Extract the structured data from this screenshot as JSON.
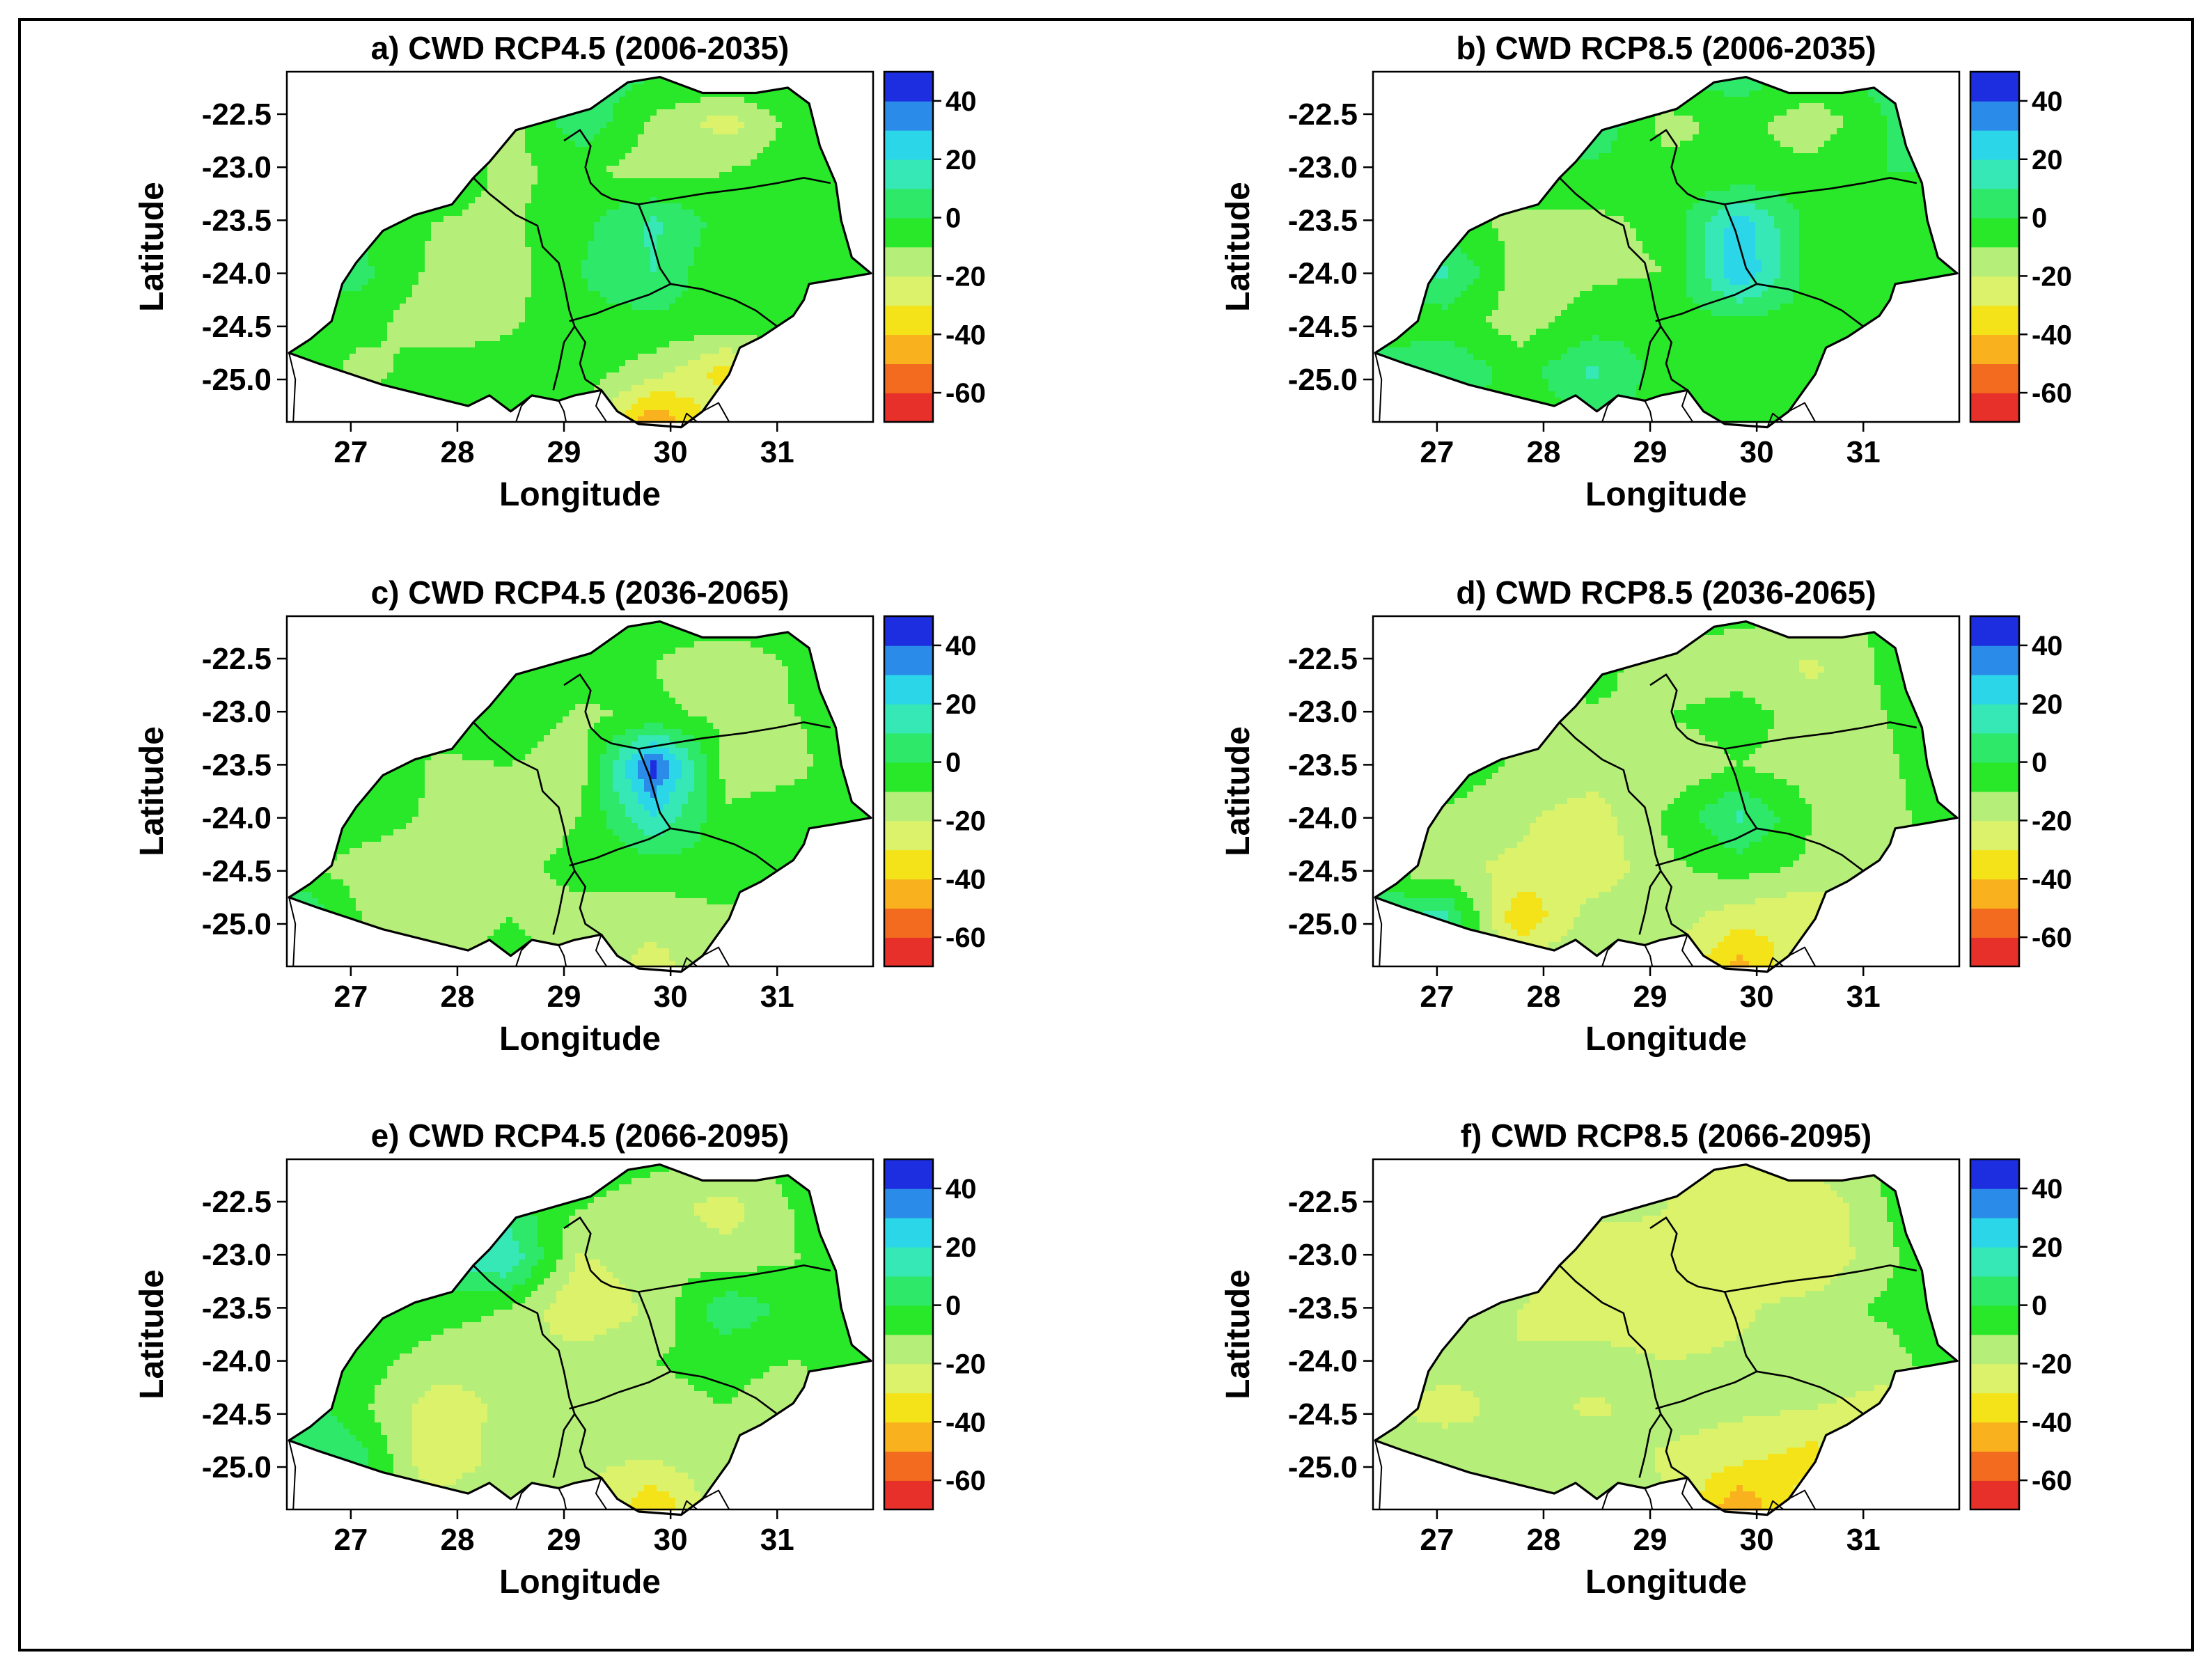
{
  "panels": [
    {
      "id": "a",
      "title": "a) CWD RCP4.5 (2006-2035)",
      "values": [
        [
          0,
          5,
          -5,
          -3,
          5,
          2,
          4,
          2,
          0
        ],
        [
          8,
          5,
          -10,
          -15,
          8,
          -12,
          -25,
          -5,
          0
        ],
        [
          -5,
          0,
          -3,
          -12,
          -8,
          -15,
          -10,
          -3,
          0
        ],
        [
          -3,
          -2,
          -10,
          -12,
          -3,
          12,
          -5,
          -10,
          0
        ],
        [
          8,
          3,
          -12,
          -15,
          0,
          10,
          -10,
          -5,
          0
        ],
        [
          -12,
          -5,
          -18,
          -12,
          -3,
          -3,
          -2,
          -5,
          0
        ],
        [
          5,
          -15,
          -3,
          -5,
          -5,
          -15,
          -35,
          -8,
          0
        ],
        [
          0,
          -3,
          -5,
          -3,
          -8,
          -50,
          -20,
          -3,
          0
        ]
      ]
    },
    {
      "id": "b",
      "title": "b) CWD RCP8.5 (2006-2035)",
      "values": [
        [
          0,
          5,
          12,
          10,
          8,
          5,
          3,
          3,
          0
        ],
        [
          10,
          8,
          15,
          10,
          -15,
          -5,
          -18,
          0,
          0
        ],
        [
          0,
          0,
          -5,
          -3,
          -5,
          -10,
          -5,
          0,
          0
        ],
        [
          -5,
          -8,
          -12,
          -12,
          -8,
          25,
          -5,
          -5,
          0
        ],
        [
          5,
          12,
          -15,
          -12,
          -10,
          30,
          -5,
          -10,
          0
        ],
        [
          -10,
          -5,
          -15,
          -5,
          -3,
          -3,
          -5,
          -8,
          0
        ],
        [
          8,
          10,
          -5,
          12,
          -5,
          -5,
          -3,
          -5,
          0
        ],
        [
          -5,
          -3,
          -5,
          -3,
          -3,
          -3,
          -3,
          -3,
          0
        ]
      ]
    },
    {
      "id": "c",
      "title": "c) CWD RCP4.5 (2036-2065)",
      "values": [
        [
          0,
          5,
          3,
          0,
          -3,
          -5,
          -3,
          -5,
          0
        ],
        [
          15,
          25,
          -15,
          -5,
          -5,
          -10,
          -18,
          -8,
          0
        ],
        [
          5,
          10,
          -5,
          -3,
          -12,
          -8,
          -12,
          -10,
          0
        ],
        [
          -5,
          5,
          -12,
          -10,
          -15,
          45,
          -15,
          -12,
          0
        ],
        [
          10,
          -3,
          -12,
          -15,
          -10,
          20,
          -8,
          -5,
          0
        ],
        [
          -8,
          -15,
          -18,
          -12,
          -8,
          -5,
          -3,
          -8,
          0
        ],
        [
          15,
          -10,
          -15,
          -10,
          -12,
          -15,
          -12,
          -10,
          0
        ],
        [
          0,
          -8,
          -10,
          -8,
          -12,
          -25,
          -10,
          -8,
          0
        ]
      ]
    },
    {
      "id": "d",
      "title": "d) CWD RCP8.5 (2036-2065)",
      "values": [
        [
          0,
          -5,
          -8,
          -5,
          -5,
          -8,
          -10,
          -8,
          0
        ],
        [
          -5,
          -10,
          -15,
          -5,
          -18,
          -15,
          -22,
          -8,
          0
        ],
        [
          -5,
          -8,
          -10,
          -12,
          -10,
          -5,
          -15,
          -10,
          0
        ],
        [
          -5,
          -3,
          -12,
          -15,
          -18,
          -10,
          -15,
          -12,
          0
        ],
        [
          -5,
          -12,
          -18,
          -25,
          -8,
          12,
          -10,
          -15,
          0
        ],
        [
          -12,
          -18,
          -22,
          -28,
          -12,
          -5,
          -12,
          -20,
          0
        ],
        [
          10,
          12,
          -40,
          -15,
          -15,
          -25,
          -30,
          -12,
          0
        ],
        [
          0,
          -3,
          -15,
          -10,
          -15,
          -45,
          -15,
          -10,
          0
        ]
      ]
    },
    {
      "id": "e",
      "title": "e) CWD RCP4.5 (2066-2095)",
      "values": [
        [
          0,
          -3,
          -5,
          0,
          -5,
          -8,
          -10,
          -5,
          0
        ],
        [
          0,
          5,
          10,
          5,
          -10,
          -15,
          -25,
          -8,
          0
        ],
        [
          0,
          10,
          8,
          20,
          -22,
          -12,
          -15,
          -10,
          0
        ],
        [
          -3,
          5,
          -5,
          -10,
          -30,
          -18,
          8,
          -5,
          0
        ],
        [
          10,
          -5,
          -15,
          -20,
          -15,
          -10,
          -8,
          -10,
          0
        ],
        [
          12,
          -8,
          -25,
          -18,
          -15,
          -12,
          -10,
          -15,
          0
        ],
        [
          8,
          5,
          -30,
          -15,
          -18,
          -20,
          -12,
          -8,
          0
        ],
        [
          0,
          -5,
          -15,
          -10,
          -15,
          -40,
          -12,
          -10,
          0
        ]
      ]
    },
    {
      "id": "f",
      "title": "f) CWD RCP8.5 (2066-2095)",
      "values": [
        [
          0,
          -8,
          -12,
          -15,
          -18,
          -20,
          -15,
          -8,
          0
        ],
        [
          -5,
          -10,
          -15,
          -18,
          -20,
          -28,
          -30,
          -10,
          0
        ],
        [
          -5,
          0,
          -15,
          -25,
          -22,
          -25,
          -30,
          -12,
          0
        ],
        [
          -5,
          -8,
          -20,
          -28,
          -30,
          -22,
          -15,
          -8,
          0
        ],
        [
          -12,
          -15,
          -20,
          -15,
          -20,
          -18,
          -12,
          -15,
          0
        ],
        [
          -18,
          -25,
          -15,
          -22,
          -15,
          -18,
          -20,
          -25,
          0
        ],
        [
          -15,
          -10,
          -20,
          -12,
          -22,
          -28,
          -35,
          -15,
          0
        ],
        [
          -3,
          -10,
          -12,
          -15,
          -18,
          -50,
          -20,
          -15,
          0
        ]
      ]
    }
  ],
  "grid": {
    "lon_min": 26.4,
    "lon_max": 31.9,
    "lat_min": -25.4,
    "lat_max": -22.1,
    "cols": 9,
    "rows": 8
  },
  "axes": {
    "xlabel": "Longitude",
    "ylabel": "Latitude",
    "x_ticks": [
      27,
      28,
      29,
      30,
      31
    ],
    "y_ticks": [
      -22.5,
      -23.0,
      -23.5,
      -24.0,
      -24.5,
      -25.0
    ],
    "x_tick_labels": [
      "27",
      "28",
      "29",
      "30",
      "31"
    ],
    "y_tick_labels": [
      "-22.5",
      "-23.0",
      "-23.5",
      "-24.0",
      "-24.5",
      "-25.0"
    ]
  },
  "colorbar": {
    "min": -70,
    "max": 50,
    "ticks": [
      40,
      20,
      0,
      -20,
      -40,
      -60
    ],
    "tick_labels": [
      "40",
      "20",
      "0",
      "-20",
      "-40",
      "-60"
    ],
    "colors": [
      "#e8302a",
      "#f26b1e",
      "#f9b21e",
      "#f5e31a",
      "#dcf26a",
      "#b5ef7a",
      "#29e82a",
      "#2ee86a",
      "#35e8b5",
      "#2ad6e8",
      "#2a8ce8",
      "#1c2ee0"
    ]
  },
  "boundary": [
    [
      26.42,
      -24.75
    ],
    [
      26.62,
      -24.62
    ],
    [
      26.82,
      -24.45
    ],
    [
      26.92,
      -24.1
    ],
    [
      27.05,
      -23.9
    ],
    [
      27.3,
      -23.6
    ],
    [
      27.6,
      -23.45
    ],
    [
      27.95,
      -23.35
    ],
    [
      28.15,
      -23.1
    ],
    [
      28.3,
      -22.95
    ],
    [
      28.55,
      -22.65
    ],
    [
      28.9,
      -22.55
    ],
    [
      29.25,
      -22.45
    ],
    [
      29.6,
      -22.2
    ],
    [
      29.9,
      -22.15
    ],
    [
      30.3,
      -22.3
    ],
    [
      30.8,
      -22.3
    ],
    [
      31.1,
      -22.25
    ],
    [
      31.3,
      -22.4
    ],
    [
      31.4,
      -22.8
    ],
    [
      31.55,
      -23.15
    ],
    [
      31.6,
      -23.5
    ],
    [
      31.7,
      -23.85
    ],
    [
      31.88,
      -24.0
    ],
    [
      31.6,
      -24.05
    ],
    [
      31.3,
      -24.1
    ],
    [
      31.25,
      -24.25
    ],
    [
      31.15,
      -24.4
    ],
    [
      31.0,
      -24.5
    ],
    [
      30.85,
      -24.6
    ],
    [
      30.65,
      -24.7
    ],
    [
      30.55,
      -24.95
    ],
    [
      30.3,
      -25.3
    ],
    [
      30.1,
      -25.45
    ],
    [
      29.7,
      -25.42
    ],
    [
      29.5,
      -25.3
    ],
    [
      29.35,
      -25.1
    ],
    [
      29.1,
      -25.15
    ],
    [
      28.95,
      -25.2
    ],
    [
      28.7,
      -25.15
    ],
    [
      28.5,
      -25.3
    ],
    [
      28.3,
      -25.15
    ],
    [
      28.1,
      -25.25
    ],
    [
      27.7,
      -25.15
    ],
    [
      27.3,
      -25.05
    ],
    [
      27.0,
      -24.95
    ],
    [
      26.7,
      -24.85
    ],
    [
      26.42,
      -24.75
    ]
  ],
  "internal_lines": [
    [
      [
        28.15,
        -23.1
      ],
      [
        28.3,
        -23.25
      ],
      [
        28.55,
        -23.45
      ],
      [
        28.75,
        -23.55
      ],
      [
        28.8,
        -23.75
      ],
      [
        28.95,
        -23.9
      ],
      [
        29.0,
        -24.1
      ],
      [
        29.05,
        -24.35
      ],
      [
        29.1,
        -24.5
      ],
      [
        29.0,
        -24.65
      ],
      [
        28.95,
        -24.9
      ],
      [
        28.9,
        -25.1
      ]
    ],
    [
      [
        29.0,
        -22.75
      ],
      [
        29.15,
        -22.65
      ],
      [
        29.25,
        -22.8
      ],
      [
        29.2,
        -23.0
      ],
      [
        29.25,
        -23.15
      ],
      [
        29.35,
        -23.25
      ],
      [
        29.45,
        -23.3
      ],
      [
        29.7,
        -23.35
      ],
      [
        30.0,
        -23.3
      ],
      [
        30.3,
        -23.25
      ],
      [
        30.7,
        -23.2
      ],
      [
        31.0,
        -23.15
      ],
      [
        31.25,
        -23.1
      ],
      [
        31.5,
        -23.15
      ]
    ],
    [
      [
        29.7,
        -23.35
      ],
      [
        29.8,
        -23.6
      ],
      [
        29.9,
        -23.95
      ],
      [
        30.0,
        -24.1
      ],
      [
        30.3,
        -24.15
      ],
      [
        30.6,
        -24.25
      ],
      [
        30.8,
        -24.35
      ],
      [
        31.0,
        -24.5
      ]
    ],
    [
      [
        29.05,
        -24.45
      ],
      [
        29.3,
        -24.38
      ],
      [
        29.5,
        -24.3
      ],
      [
        29.8,
        -24.2
      ],
      [
        30.0,
        -24.1
      ]
    ],
    [
      [
        29.1,
        -24.5
      ],
      [
        29.2,
        -24.65
      ],
      [
        29.15,
        -24.85
      ],
      [
        29.2,
        -25.0
      ],
      [
        29.35,
        -25.1
      ]
    ]
  ],
  "outside_lines": [
    [
      [
        26.42,
        -24.75
      ],
      [
        26.48,
        -25.0
      ],
      [
        26.46,
        -25.4
      ]
    ],
    [
      [
        28.7,
        -25.15
      ],
      [
        28.6,
        -25.25
      ],
      [
        28.55,
        -25.4
      ]
    ],
    [
      [
        28.95,
        -25.2
      ],
      [
        29.0,
        -25.3
      ],
      [
        29.02,
        -25.4
      ]
    ],
    [
      [
        30.1,
        -25.45
      ],
      [
        30.15,
        -25.32
      ],
      [
        30.25,
        -25.4
      ]
    ],
    [
      [
        30.3,
        -25.3
      ],
      [
        30.45,
        -25.22
      ],
      [
        30.55,
        -25.4
      ]
    ],
    [
      [
        29.35,
        -25.1
      ],
      [
        29.3,
        -25.25
      ],
      [
        29.4,
        -25.4
      ]
    ]
  ]
}
